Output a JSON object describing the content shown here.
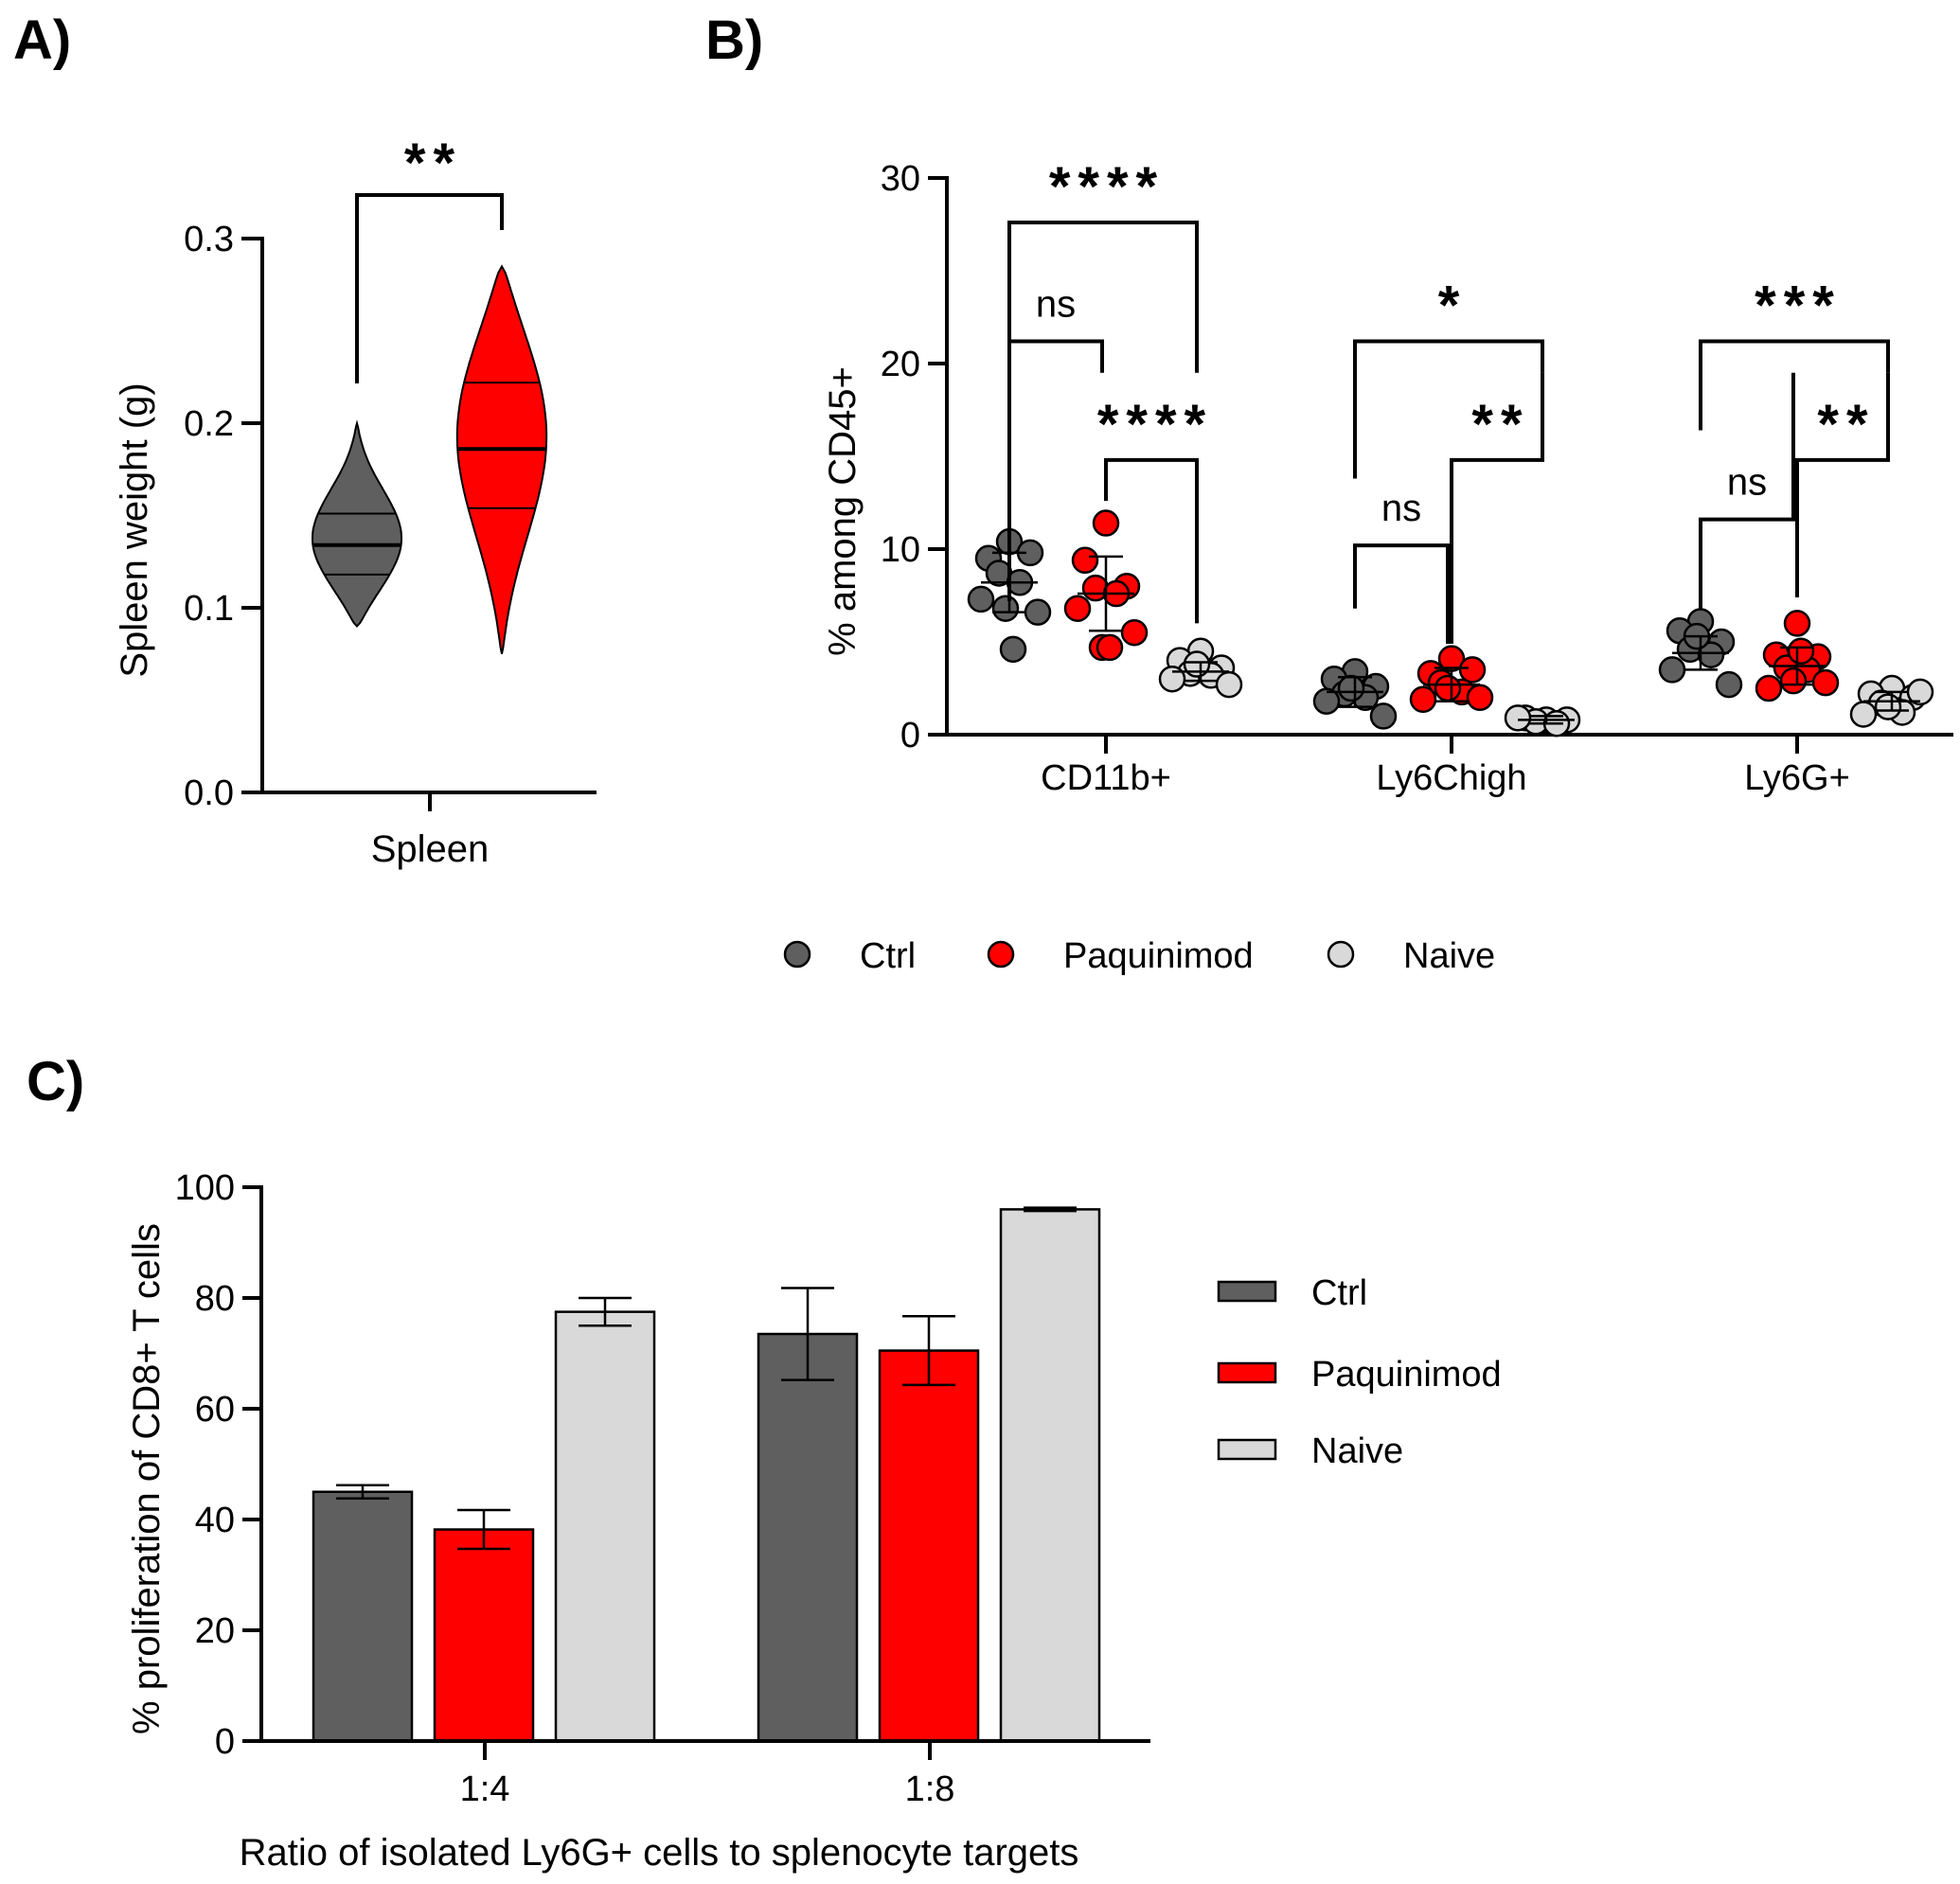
{
  "colors": {
    "ctrl": "#5f5f5f",
    "paquinimod": "#ff0000",
    "naive": "#d9d9d9"
  },
  "chart_data": [
    {
      "panel": "A)",
      "type": "violin",
      "title": "",
      "xlabel": "",
      "ylabel": "Spleen weight (g)",
      "ylim": [
        0,
        0.3
      ],
      "yticks": [
        "0.0",
        "0.1",
        "0.2",
        "0.3"
      ],
      "categories": [
        "Spleen"
      ],
      "series": [
        {
          "name": "Ctrl",
          "min": 0.09,
          "max": 0.2,
          "q1": 0.118,
          "median": 0.134,
          "q3": 0.151,
          "mode": 0.134
        },
        {
          "name": "Paquinimod",
          "min": 0.075,
          "max": 0.285,
          "q1": 0.154,
          "median": 0.186,
          "q3": 0.222,
          "mode": 0.2
        }
      ],
      "annotations": [
        {
          "between": [
            "Ctrl",
            "Paquinimod"
          ],
          "label": "**"
        }
      ]
    },
    {
      "panel": "B)",
      "type": "scatter",
      "title": "",
      "xlabel": "",
      "ylabel": "% among CD45+",
      "ylim": [
        0,
        30
      ],
      "yticks": [
        "0",
        "10",
        "20",
        "30"
      ],
      "categories": [
        "CD11b+",
        "Ly6Chigh",
        "Ly6G+"
      ],
      "series": [
        {
          "name": "Ctrl",
          "mean": [
            8.2,
            2.3,
            4.4
          ],
          "sd": [
            1.6,
            0.8,
            0.9
          ],
          "points": [
            [
              10.4,
              9.5,
              9.8,
              8.7,
              8.2,
              7.3,
              6.6,
              6.8,
              4.6
            ],
            [
              3.4,
              3.0,
              2.6,
              2.2,
              2.0,
              1.8,
              1.0,
              2.5
            ],
            [
              6.1,
              5.6,
              5.0,
              4.6,
              4.3,
              3.5,
              2.7,
              5.3
            ]
          ]
        },
        {
          "name": "Paquinimod",
          "mean": [
            7.6,
            2.7,
            3.7
          ],
          "sd": [
            2.0,
            0.9,
            1.0
          ],
          "points": [
            [
              11.4,
              9.4,
              8.0,
              7.9,
              7.6,
              6.8,
              5.5,
              4.7,
              4.7
            ],
            [
              4.1,
              3.3,
              3.5,
              2.8,
              2.3,
              1.9,
              2.0,
              2.5
            ],
            [
              6.0,
              4.3,
              4.2,
              3.6,
              3.5,
              2.5,
              2.8,
              2.9,
              4.5
            ]
          ]
        },
        {
          "name": "Naive",
          "mean": [
            3.4,
            0.8,
            1.8
          ],
          "sd": [
            0.5,
            0.2,
            0.5
          ],
          "points": [
            [
              4.5,
              4.0,
              3.6,
              3.3,
              3.2,
              3.0,
              2.7,
              3.8
            ],
            [
              0.8,
              0.9,
              0.8,
              0.7,
              0.6,
              0.9
            ],
            [
              2.5,
              2.2,
              2.0,
              1.7,
              1.2,
              1.1,
              2.3,
              1.5
            ]
          ]
        }
      ],
      "annotations": [
        {
          "category": "CD11b+",
          "between": [
            "Ctrl",
            "Naive"
          ],
          "label": "****",
          "bar_y": 27.6
        },
        {
          "category": "CD11b+",
          "between": [
            "Ctrl",
            "Paquinimod"
          ],
          "label": "ns",
          "bar_y": 21.2
        },
        {
          "category": "CD11b+",
          "between": [
            "Paquinimod",
            "Naive"
          ],
          "label": "****",
          "bar_y": 14.8
        },
        {
          "category": "Ly6Chigh",
          "between": [
            "Ctrl",
            "Naive"
          ],
          "label": "*",
          "bar_y": 21.2
        },
        {
          "category": "Ly6Chigh",
          "between": [
            "Ctrl",
            "Paquinimod"
          ],
          "label": "ns",
          "bar_y": 10.2
        },
        {
          "category": "Ly6Chigh",
          "between": [
            "Paquinimod",
            "Naive"
          ],
          "label": "**",
          "bar_y": 14.8
        },
        {
          "category": "Ly6G+",
          "between": [
            "Ctrl",
            "Naive"
          ],
          "label": "***",
          "bar_y": 21.2
        },
        {
          "category": "Ly6G+",
          "between": [
            "Ctrl",
            "Paquinimod"
          ],
          "label": "ns",
          "bar_y": 11.6
        },
        {
          "category": "Ly6G+",
          "between": [
            "Paquinimod",
            "Naive"
          ],
          "label": "**",
          "bar_y": 14.8
        }
      ],
      "legend": [
        "Ctrl",
        "Paquinimod",
        "Naive"
      ]
    },
    {
      "panel": "C)",
      "type": "bar",
      "title": "",
      "xlabel": "Ratio of  isolated Ly6G+ cells to splenocyte targets",
      "ylabel": "% proliferation of CD8+ T cells",
      "ylim": [
        0,
        100
      ],
      "yticks": [
        "0",
        "20",
        "40",
        "60",
        "80",
        "100"
      ],
      "categories": [
        "1:4",
        "1:8"
      ],
      "series": [
        {
          "name": "Ctrl",
          "values": [
            45,
            73.5
          ],
          "errors": [
            1.2,
            8.3
          ]
        },
        {
          "name": "Paquinimod",
          "values": [
            38.2,
            70.5
          ],
          "errors": [
            3.5,
            6.2
          ]
        },
        {
          "name": "Naive",
          "values": [
            77.5,
            96
          ],
          "errors": [
            2.5,
            0.3
          ]
        }
      ],
      "legend": [
        "Ctrl",
        "Paquinimod",
        "Naive"
      ],
      "legend_position": "right"
    }
  ]
}
